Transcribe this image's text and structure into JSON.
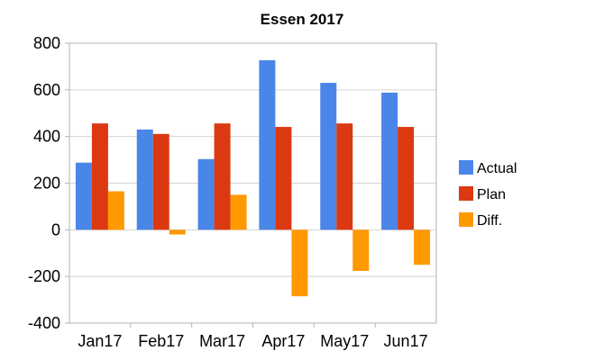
{
  "chart_data": {
    "type": "bar",
    "title": "Essen 2017",
    "categories": [
      "Jan17",
      "Feb17",
      "Mar17",
      "Apr17",
      "May17",
      "Jun17"
    ],
    "series": [
      {
        "name": "Actual",
        "color": "#4a86e8",
        "values": [
          288,
          430,
          303,
          727,
          630,
          588
        ]
      },
      {
        "name": "Plan",
        "color": "#dc3912",
        "values": [
          456,
          411,
          456,
          441,
          456,
          441
        ]
      },
      {
        "name": "Diff.",
        "color": "#ff9900",
        "values": [
          165,
          -20,
          150,
          -285,
          -176,
          -150
        ]
      }
    ],
    "ylim": [
      -400,
      800
    ],
    "yticks": [
      "-400",
      "-200",
      "0",
      "200",
      "400",
      "600",
      "800"
    ],
    "grid": true,
    "legend": "right"
  }
}
